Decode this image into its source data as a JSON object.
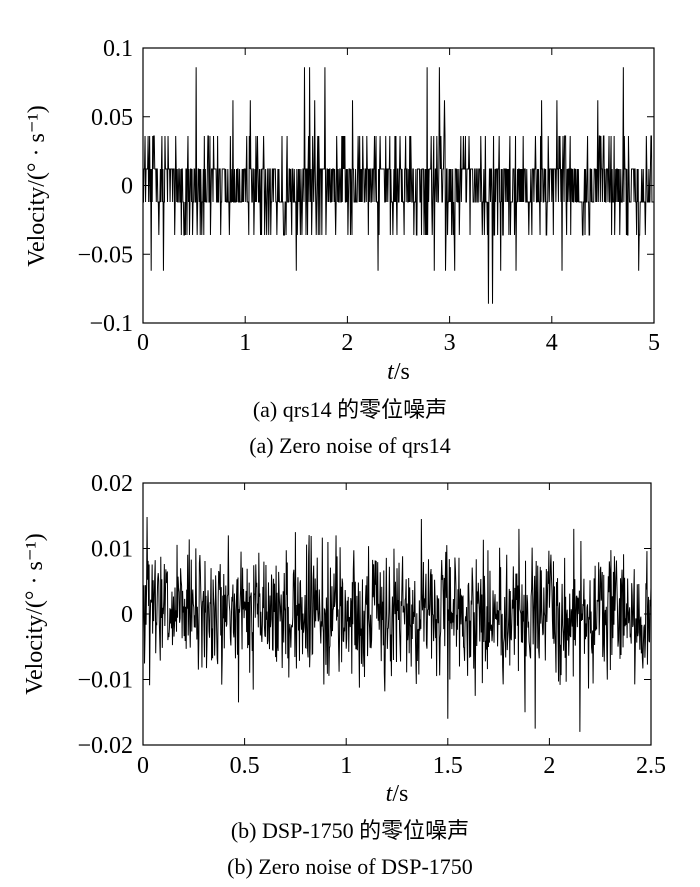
{
  "chart_data": [
    {
      "type": "line",
      "panel": "a",
      "xlabel_italic": "t",
      "xlabel_unit": "/s",
      "ylabel": "Velocity/(° · s⁻¹)",
      "xlim": [
        0,
        5
      ],
      "ylim": [
        -0.1,
        0.1
      ],
      "x_ticks": [
        "0",
        "1",
        "2",
        "3",
        "4",
        "5"
      ],
      "y_ticks": [
        "0.1",
        "0.05",
        "0",
        "−0.05",
        "−0.1"
      ],
      "x_tick_values": [
        0,
        1,
        2,
        3,
        4,
        5
      ],
      "y_tick_values": [
        0.1,
        0.05,
        0,
        -0.05,
        -0.1
      ],
      "series": [
        {
          "sample_interval_s": 0.005,
          "level_values": [
            -0.086,
            -0.062,
            -0.036,
            -0.012,
            0.012,
            0.036,
            0.062,
            0.086
          ],
          "spikes": [
            {
              "t": 0.05,
              "v": 0.036
            },
            {
              "t": 0.08,
              "v": -0.062
            },
            {
              "t": 0.2,
              "v": -0.062
            },
            {
              "t": 0.52,
              "v": 0.086
            },
            {
              "t": 0.88,
              "v": 0.062
            },
            {
              "t": 1.05,
              "v": 0.062
            },
            {
              "t": 1.58,
              "v": 0.086
            },
            {
              "t": 1.63,
              "v": 0.086
            },
            {
              "t": 1.68,
              "v": 0.062
            },
            {
              "t": 1.78,
              "v": 0.086
            },
            {
              "t": 1.5,
              "v": -0.062
            },
            {
              "t": 2.05,
              "v": 0.062
            },
            {
              "t": 2.3,
              "v": -0.062
            },
            {
              "t": 2.78,
              "v": 0.086
            },
            {
              "t": 2.9,
              "v": 0.086
            },
            {
              "t": 2.95,
              "v": 0.062
            },
            {
              "t": 3.05,
              "v": 0.086
            },
            {
              "t": 2.85,
              "v": -0.062
            },
            {
              "t": 2.96,
              "v": -0.062
            },
            {
              "t": 3.05,
              "v": -0.062
            },
            {
              "t": 3.38,
              "v": -0.086
            },
            {
              "t": 3.42,
              "v": -0.086
            },
            {
              "t": 3.5,
              "v": -0.062
            },
            {
              "t": 3.65,
              "v": -0.062
            },
            {
              "t": 3.9,
              "v": 0.062
            },
            {
              "t": 4.05,
              "v": 0.062
            },
            {
              "t": 4.7,
              "v": 0.086
            },
            {
              "t": 4.45,
              "v": 0.062
            },
            {
              "t": 4.85,
              "v": -0.062
            },
            {
              "t": 4.1,
              "v": -0.062
            }
          ]
        }
      ]
    },
    {
      "type": "line",
      "panel": "b",
      "xlabel_italic": "t",
      "xlabel_unit": "/s",
      "ylabel": "Velocity/(° · s⁻¹)",
      "xlim": [
        0,
        2.5
      ],
      "ylim": [
        -0.02,
        0.02
      ],
      "x_ticks": [
        "0",
        "0.5",
        "1",
        "1.5",
        "2",
        "2.5"
      ],
      "y_ticks": [
        "0.02",
        "0.01",
        "0",
        "−0.01",
        "−0.02"
      ],
      "x_tick_values": [
        0,
        0.5,
        1,
        1.5,
        2,
        2.5
      ],
      "y_tick_values": [
        0.02,
        0.01,
        0,
        -0.01,
        -0.02
      ],
      "series": [
        {
          "sample_interval_s": 0.0025,
          "spikes": [
            {
              "t": 0.02,
              "v": 0.0148
            },
            {
              "t": 1.37,
              "v": 0.0145
            },
            {
              "t": 0.47,
              "v": -0.0135
            },
            {
              "t": 0.42,
              "v": 0.012
            },
            {
              "t": 1.5,
              "v": -0.016
            },
            {
              "t": 1.88,
              "v": -0.015
            },
            {
              "t": 1.93,
              "v": -0.0175
            },
            {
              "t": 2.15,
              "v": -0.018
            },
            {
              "t": 2.12,
              "v": 0.013
            },
            {
              "t": 1.85,
              "v": 0.013
            },
            {
              "t": 0.75,
              "v": 0.0125
            },
            {
              "t": 0.95,
              "v": 0.012
            }
          ]
        }
      ]
    }
  ],
  "captions": {
    "a_cn": "(a) qrs14 的零位噪声",
    "a_en": "(a) Zero noise of qrs14",
    "b_cn": "(b) DSP-1750 的零位噪声",
    "b_en": "(b) Zero noise of DSP-1750"
  },
  "colors": {
    "line": "#000000",
    "axis": "#000000",
    "background": "#ffffff"
  }
}
